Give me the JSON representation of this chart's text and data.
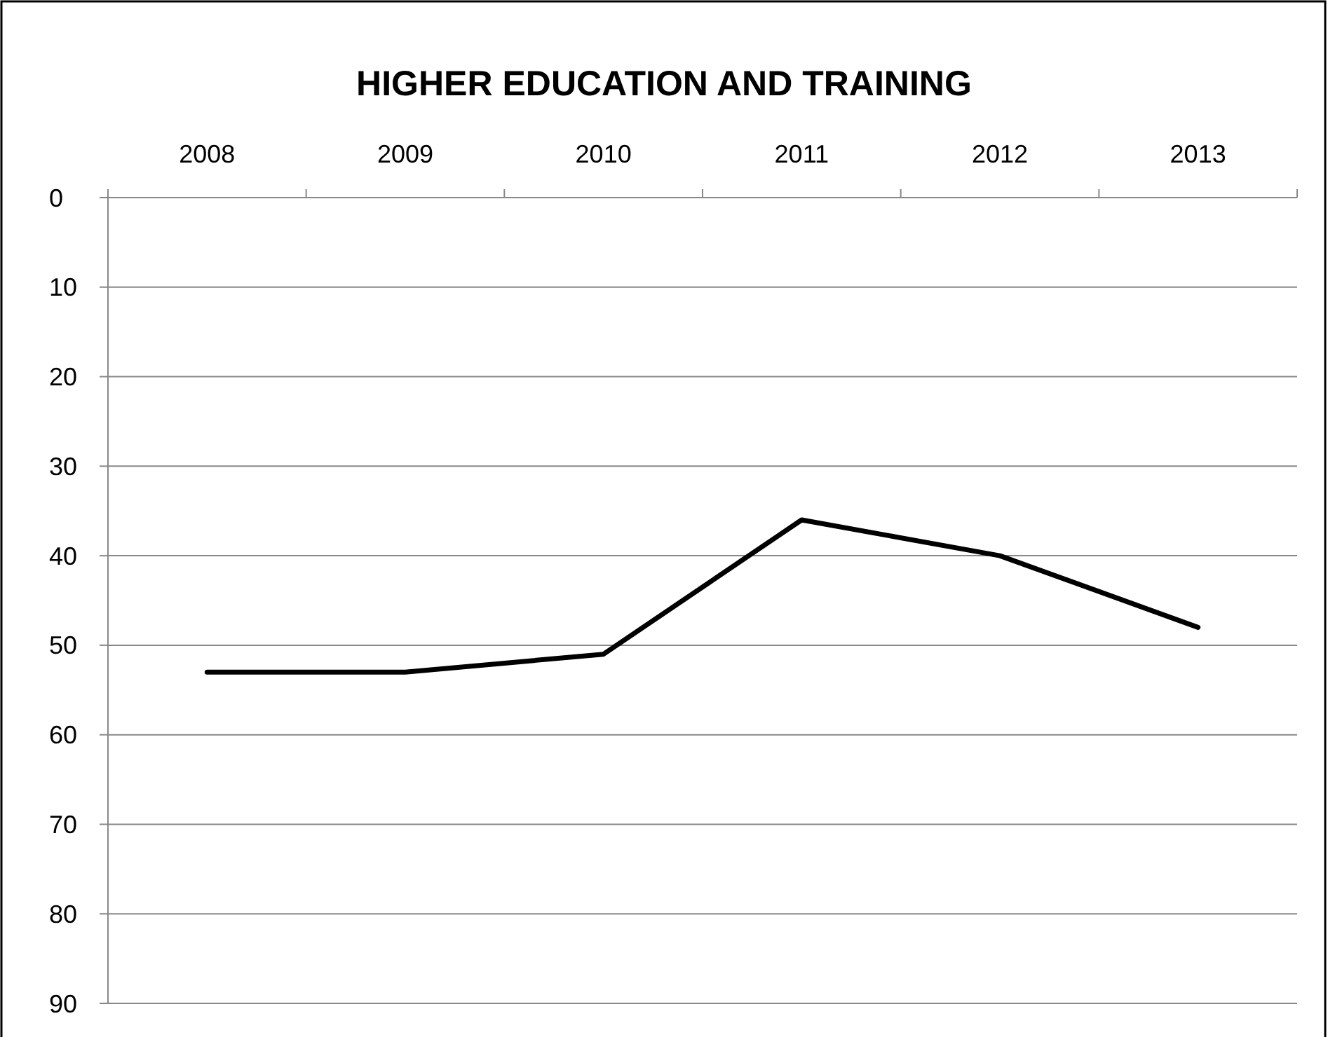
{
  "chart_data": {
    "type": "line",
    "title": "HIGHER EDUCATION AND TRAINING",
    "categories": [
      "2008",
      "2009",
      "2010",
      "2011",
      "2012",
      "2013"
    ],
    "series": [
      {
        "color": "#000000",
        "values": [
          53,
          53,
          51,
          36,
          40,
          48
        ]
      }
    ],
    "ylim": [
      90,
      0
    ],
    "yticks": [
      0,
      10,
      20,
      30,
      40,
      50,
      60,
      70,
      80,
      90
    ],
    "grid": "y",
    "marker": "none",
    "line_style": "solid"
  }
}
